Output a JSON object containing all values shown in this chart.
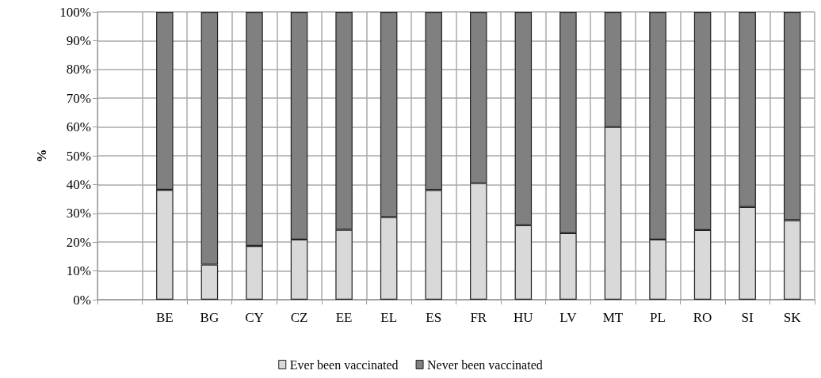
{
  "chart_data": {
    "type": "bar",
    "stacked": true,
    "ylabel": "%",
    "categories": [
      null,
      "BE",
      "BG",
      "CY",
      "CZ",
      "EE",
      "EL",
      "ES",
      "FR",
      "HU",
      "LV",
      "MT",
      "PL",
      "RO",
      "SI",
      "SK"
    ],
    "series": [
      {
        "name": "Ever been vaccinated",
        "color": "#d9d9d9",
        "values": [
          null,
          38.2,
          12.2,
          18.7,
          20.9,
          24.3,
          28.7,
          38.1,
          40.5,
          25.9,
          23.1,
          60,
          20.9,
          24.2,
          32.2,
          27.6
        ]
      },
      {
        "name": "Never been vaccinated",
        "color": "#808080",
        "values": [
          null,
          61.8,
          87.8,
          81.3,
          79.1,
          75.7,
          71.3,
          61.9,
          59.5,
          74.1,
          76.9,
          40,
          79.1,
          75.8,
          67.8,
          72.4
        ]
      }
    ],
    "ylim": [
      0,
      100
    ],
    "yticks": [
      {
        "value": 0,
        "label": "0%"
      },
      {
        "value": 10,
        "label": "10%"
      },
      {
        "value": 20,
        "label": "20%"
      },
      {
        "value": 30,
        "label": "30%"
      },
      {
        "value": 40,
        "label": "40%"
      },
      {
        "value": 50,
        "label": "50%"
      },
      {
        "value": 60,
        "label": "60%"
      },
      {
        "value": 70,
        "label": "70%"
      },
      {
        "value": 80,
        "label": "80%"
      },
      {
        "value": 90,
        "label": "90%"
      },
      {
        "value": 100,
        "label": "100%"
      }
    ],
    "grid": true,
    "legend": "bottom"
  }
}
